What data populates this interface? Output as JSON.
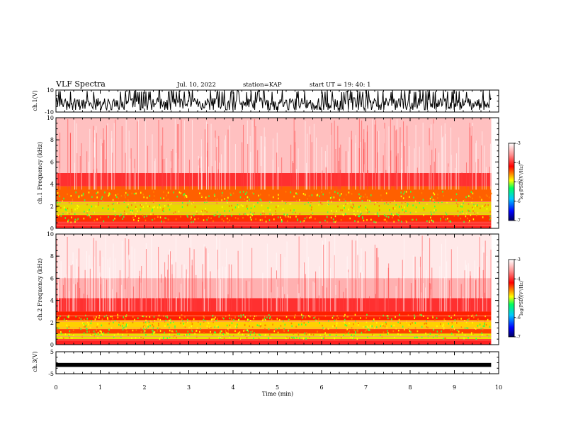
{
  "header": {
    "title": "VLF Spectra",
    "date": "Jul. 10, 2022",
    "station": "station=KAP",
    "start": "start UT =  19: 40: 1"
  },
  "chart_data": [
    {
      "type": "line",
      "panel": "ch1-waveform",
      "ylabel": "ch.1(V)",
      "ylim": [
        -10,
        10
      ],
      "xlim": [
        0,
        10
      ],
      "yticks": [
        "10",
        "-10"
      ],
      "description_values": {
        "baseline": -3,
        "min": -10,
        "max": 10
      }
    },
    {
      "type": "heatmap",
      "panel": "ch1-spectrogram",
      "ylabel": "ch.1 Frequency (kHz)",
      "ylim": [
        0,
        10
      ],
      "xlim": [
        0,
        10
      ],
      "yticks": [
        "0",
        "2",
        "4",
        "6",
        "8",
        "10"
      ],
      "colorbar": {
        "label": "log(PSD)(V²/Hz)",
        "ticks": [
          "-3",
          "-4",
          "-5",
          "-6",
          "-7"
        ],
        "range": [
          -7,
          -3
        ]
      }
    },
    {
      "type": "heatmap",
      "panel": "ch2-spectrogram",
      "ylabel": "ch.2 Frequency (kHz)",
      "ylim": [
        0,
        10
      ],
      "xlim": [
        0,
        10
      ],
      "yticks": [
        "0",
        "2",
        "4",
        "6",
        "8",
        "10"
      ],
      "colorbar": {
        "label": "log(PSD)(V²/Hz)",
        "ticks": [
          "-3",
          "-4",
          "-5",
          "-6",
          "-7"
        ],
        "range": [
          -7,
          -3
        ]
      }
    },
    {
      "type": "line",
      "panel": "ch3-waveform",
      "ylabel": "ch.3(V)",
      "ylim": [
        -5,
        5
      ],
      "xlim": [
        0,
        10
      ],
      "yticks": [
        "5",
        "-5"
      ],
      "description_values": {
        "baseline": -1
      }
    }
  ],
  "xaxis": {
    "label": "Time (min)",
    "ticks": [
      "0",
      "1",
      "2",
      "3",
      "4",
      "5",
      "6",
      "7",
      "8",
      "9",
      "10"
    ],
    "data_end": 9.83
  },
  "colors": {
    "low": "#000080",
    "mid_low": "#00c8ff",
    "mid": "#00ff00",
    "mid_high": "#ffff00",
    "high": "#ff0000",
    "max": "#ffffff"
  }
}
